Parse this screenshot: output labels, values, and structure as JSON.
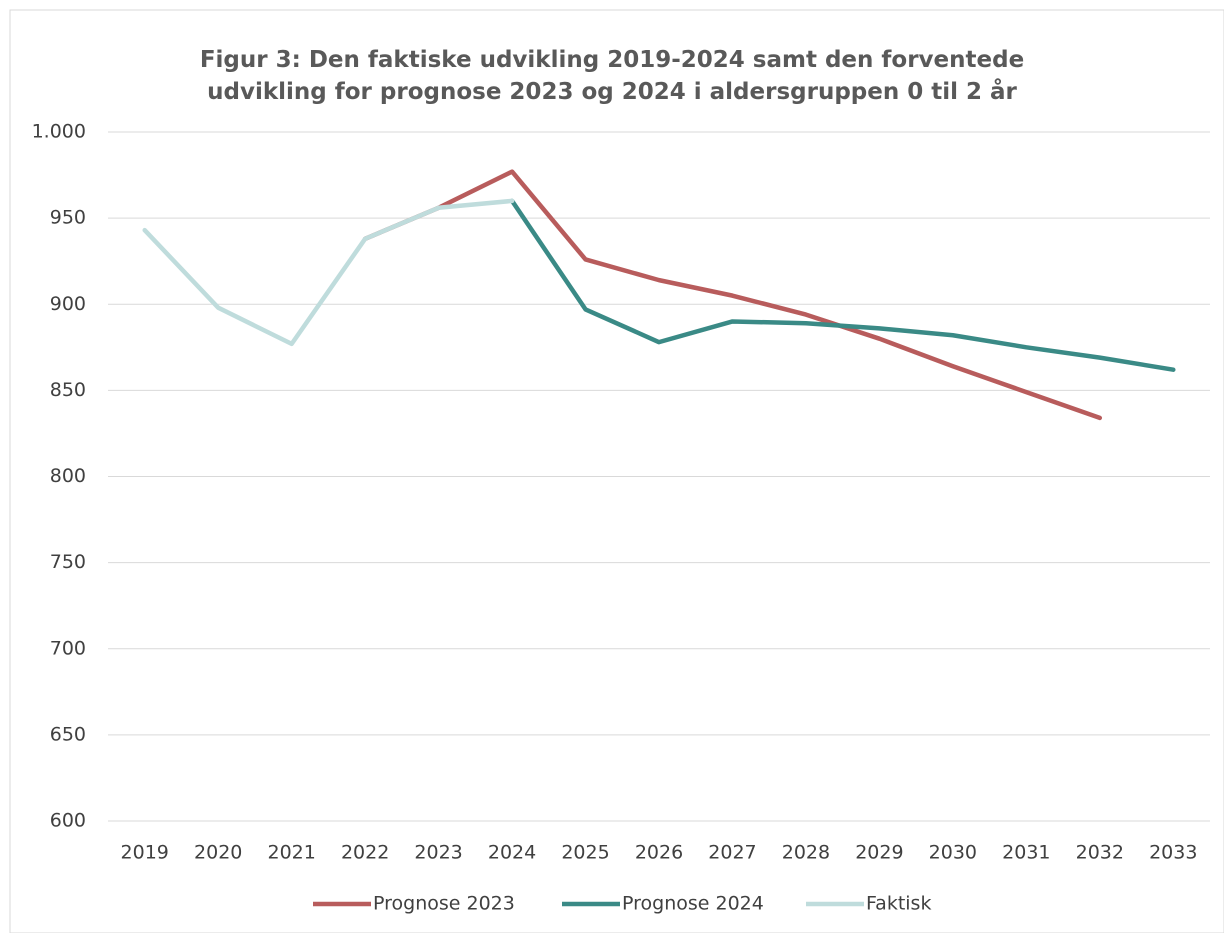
{
  "chart_data": {
    "type": "line",
    "title": "Figur 3: Den faktiske udvikling 2019-2024 samt den forventede udvikling for prognose 2023 og 2024 i aldersgruppen 0 til 2 år",
    "categories": [
      "2019",
      "2020",
      "2021",
      "2022",
      "2023",
      "2024",
      "2025",
      "2026",
      "2027",
      "2028",
      "2029",
      "2030",
      "2031",
      "2032",
      "2033"
    ],
    "series": [
      {
        "name": "Prognose 2023",
        "color": "#b85c5c",
        "values": [
          null,
          null,
          null,
          938,
          956,
          977,
          926,
          914,
          905,
          894,
          880,
          864,
          849,
          834,
          null
        ]
      },
      {
        "name": "Prognose 2024",
        "color": "#3a8a86",
        "values": [
          null,
          null,
          null,
          null,
          null,
          960,
          897,
          878,
          890,
          889,
          886,
          882,
          875,
          869,
          862
        ]
      },
      {
        "name": "Faktisk",
        "color": "#bfdcdc",
        "values": [
          943,
          898,
          877,
          938,
          956,
          960,
          null,
          null,
          null,
          null,
          null,
          null,
          null,
          null,
          null
        ]
      }
    ],
    "ylim": [
      600,
      1000
    ],
    "yticks": [
      600,
      650,
      700,
      750,
      800,
      850,
      900,
      950,
      {
        "value": 1000,
        "label": "1.000"
      }
    ],
    "grid": true,
    "legend": "bottom"
  }
}
